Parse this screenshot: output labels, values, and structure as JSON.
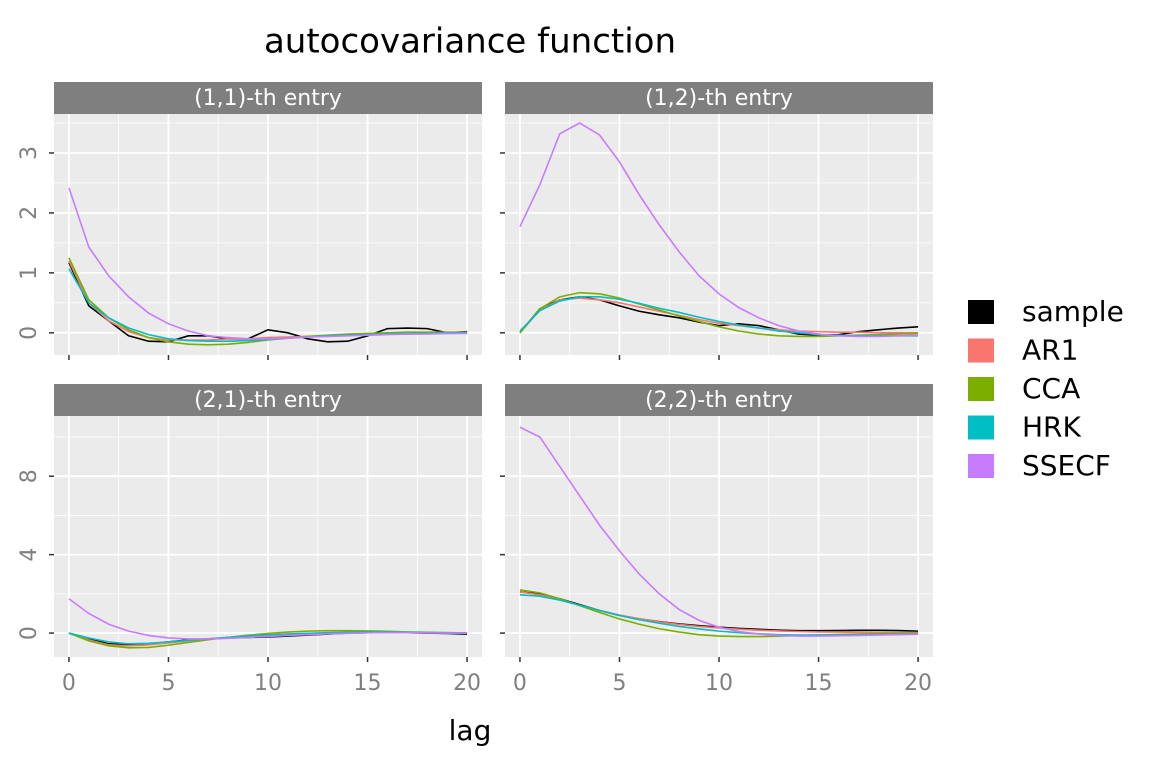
{
  "title": "autocovariance function",
  "x_label": "lag",
  "legend": {
    "position": "right",
    "series": [
      {
        "name": "sample",
        "color": "#000000"
      },
      {
        "name": "AR1",
        "color": "#F8766D"
      },
      {
        "name": "CCA",
        "color": "#7CAE00"
      },
      {
        "name": "HRK",
        "color": "#00BFC4"
      },
      {
        "name": "SSECF",
        "color": "#C77CFF"
      }
    ]
  },
  "chart_data": [
    {
      "type": "line",
      "strip": "(1,1)-th entry",
      "x": [
        0,
        1,
        2,
        3,
        4,
        5,
        6,
        7,
        8,
        9,
        10,
        11,
        12,
        13,
        14,
        15,
        16,
        17,
        18,
        19,
        20
      ],
      "xlim": [
        -0.75,
        20.75
      ],
      "xticks": [
        0,
        5,
        10,
        15,
        20
      ],
      "ylim": [
        -0.37,
        3.65
      ],
      "yticks": [
        0,
        1,
        2,
        3
      ],
      "grid": true,
      "series": [
        {
          "values": [
            1.17,
            0.45,
            0.2,
            -0.05,
            -0.14,
            -0.15,
            -0.05,
            -0.05,
            -0.1,
            -0.1,
            0.05,
            0,
            -0.1,
            -0.15,
            -0.14,
            -0.05,
            0.07,
            0.08,
            0.07,
            0,
            0.02
          ]
        },
        {
          "values": [
            1.2,
            0.5,
            0.2,
            0.02,
            -0.08,
            -0.12,
            -0.12,
            -0.12,
            -0.1,
            -0.1,
            -0.08,
            -0.07,
            -0.06,
            -0.05,
            -0.04,
            -0.03,
            -0.02,
            -0.02,
            -0.01,
            -0.01,
            0
          ]
        },
        {
          "values": [
            1.25,
            0.55,
            0.25,
            0.05,
            -0.08,
            -0.15,
            -0.19,
            -0.2,
            -0.19,
            -0.16,
            -0.12,
            -0.09,
            -0.06,
            -0.04,
            -0.02,
            -0.01,
            0,
            0.01,
            0.01,
            0.01,
            0.01
          ]
        },
        {
          "values": [
            1.07,
            0.5,
            0.25,
            0.08,
            -0.03,
            -0.1,
            -0.13,
            -0.14,
            -0.14,
            -0.13,
            -0.11,
            -0.09,
            -0.07,
            -0.05,
            -0.04,
            -0.03,
            -0.02,
            -0.01,
            -0.01,
            0,
            0
          ]
        },
        {
          "values": [
            2.42,
            1.43,
            0.95,
            0.6,
            0.33,
            0.15,
            0.03,
            -0.05,
            -0.08,
            -0.1,
            -0.1,
            -0.09,
            -0.07,
            -0.06,
            -0.05,
            -0.04,
            -0.03,
            -0.02,
            -0.02,
            -0.01,
            -0.01
          ]
        }
      ]
    },
    {
      "type": "line",
      "strip": "(1,2)-th entry",
      "x": [
        0,
        1,
        2,
        3,
        4,
        5,
        6,
        7,
        8,
        9,
        10,
        11,
        12,
        13,
        14,
        15,
        16,
        17,
        18,
        19,
        20
      ],
      "xlim": [
        -0.75,
        20.75
      ],
      "xticks": [
        0,
        5,
        10,
        15,
        20
      ],
      "ylim": [
        -0.37,
        3.65
      ],
      "yticks": [
        0,
        1,
        2,
        3
      ],
      "grid": true,
      "series": [
        {
          "values": [
            0,
            0.4,
            0.55,
            0.6,
            0.55,
            0.45,
            0.36,
            0.3,
            0.25,
            0.18,
            0.12,
            0.15,
            0.12,
            0.05,
            -0.02,
            -0.04,
            -0.03,
            0.02,
            0.05,
            0.08,
            0.1
          ]
        },
        {
          "values": [
            0,
            0.38,
            0.55,
            0.58,
            0.55,
            0.5,
            0.43,
            0.36,
            0.29,
            0.22,
            0.16,
            0.12,
            0.08,
            0.05,
            0.03,
            0.02,
            0.01,
            0.01,
            0,
            0,
            0
          ]
        },
        {
          "values": [
            0,
            0.4,
            0.6,
            0.67,
            0.65,
            0.58,
            0.48,
            0.38,
            0.28,
            0.19,
            0.1,
            0.03,
            -0.02,
            -0.05,
            -0.06,
            -0.06,
            -0.05,
            -0.04,
            -0.03,
            -0.02,
            -0.01
          ]
        },
        {
          "values": [
            0.03,
            0.37,
            0.53,
            0.6,
            0.6,
            0.56,
            0.49,
            0.41,
            0.34,
            0.26,
            0.19,
            0.13,
            0.08,
            0.03,
            0,
            -0.03,
            -0.04,
            -0.05,
            -0.05,
            -0.05,
            -0.05
          ]
        },
        {
          "values": [
            1.77,
            2.47,
            3.32,
            3.5,
            3.3,
            2.85,
            2.3,
            1.8,
            1.35,
            0.95,
            0.65,
            0.42,
            0.25,
            0.12,
            0.03,
            -0.02,
            -0.05,
            -0.06,
            -0.06,
            -0.05,
            -0.04
          ]
        }
      ]
    },
    {
      "type": "line",
      "strip": "(2,1)-th entry",
      "x": [
        0,
        1,
        2,
        3,
        4,
        5,
        6,
        7,
        8,
        9,
        10,
        11,
        12,
        13,
        14,
        15,
        16,
        17,
        18,
        19,
        20
      ],
      "xlim": [
        -0.75,
        20.75
      ],
      "xticks": [
        0,
        5,
        10,
        15,
        20
      ],
      "ylim": [
        -1.22,
        11.07
      ],
      "yticks": [
        0,
        4,
        8
      ],
      "grid": true,
      "series": [
        {
          "values": [
            0,
            -0.3,
            -0.55,
            -0.6,
            -0.55,
            -0.45,
            -0.35,
            -0.3,
            -0.25,
            -0.22,
            -0.2,
            -0.15,
            -0.1,
            -0.05,
            0,
            0.02,
            0.03,
            0.02,
            0,
            -0.02,
            -0.05
          ]
        },
        {
          "values": [
            0,
            -0.35,
            -0.6,
            -0.65,
            -0.6,
            -0.5,
            -0.4,
            -0.3,
            -0.22,
            -0.15,
            -0.1,
            -0.05,
            -0.02,
            0,
            0.01,
            0.02,
            0.02,
            0.02,
            0.01,
            0,
            0
          ]
        },
        {
          "values": [
            0,
            -0.4,
            -0.65,
            -0.75,
            -0.73,
            -0.62,
            -0.48,
            -0.34,
            -0.22,
            -0.11,
            -0.02,
            0.05,
            0.1,
            0.12,
            0.12,
            0.11,
            0.09,
            0.06,
            0.04,
            0.02,
            0
          ]
        },
        {
          "values": [
            0,
            -0.25,
            -0.45,
            -0.55,
            -0.52,
            -0.45,
            -0.37,
            -0.29,
            -0.22,
            -0.15,
            -0.1,
            -0.05,
            -0.01,
            0.02,
            0.04,
            0.05,
            0.05,
            0.04,
            0.03,
            0.02,
            0.01
          ]
        },
        {
          "values": [
            1.75,
            1.0,
            0.45,
            0.1,
            -0.12,
            -0.25,
            -0.3,
            -0.3,
            -0.27,
            -0.22,
            -0.17,
            -0.12,
            -0.08,
            -0.04,
            -0.01,
            0.01,
            0.02,
            0.02,
            0.01,
            0,
            0
          ]
        }
      ]
    },
    {
      "type": "line",
      "strip": "(2,2)-th entry",
      "x": [
        0,
        1,
        2,
        3,
        4,
        5,
        6,
        7,
        8,
        9,
        10,
        11,
        12,
        13,
        14,
        15,
        16,
        17,
        18,
        19,
        20
      ],
      "xlim": [
        -0.75,
        20.75
      ],
      "xticks": [
        0,
        5,
        10,
        15,
        20
      ],
      "ylim": [
        -1.22,
        11.07
      ],
      "yticks": [
        0,
        4,
        8
      ],
      "grid": true,
      "series": [
        {
          "values": [
            2.1,
            2.0,
            1.75,
            1.45,
            1.15,
            0.9,
            0.72,
            0.58,
            0.47,
            0.38,
            0.3,
            0.24,
            0.19,
            0.15,
            0.12,
            0.12,
            0.13,
            0.14,
            0.14,
            0.13,
            0.1
          ]
        },
        {
          "values": [
            2.1,
            1.95,
            1.7,
            1.42,
            1.15,
            0.92,
            0.73,
            0.57,
            0.44,
            0.34,
            0.26,
            0.2,
            0.15,
            0.11,
            0.08,
            0.06,
            0.05,
            0.04,
            0.03,
            0.02,
            0.02
          ]
        },
        {
          "values": [
            2.2,
            2.05,
            1.75,
            1.4,
            1.05,
            0.72,
            0.45,
            0.22,
            0.05,
            -0.08,
            -0.15,
            -0.18,
            -0.18,
            -0.16,
            -0.13,
            -0.1,
            -0.07,
            -0.05,
            -0.03,
            -0.02,
            -0.01
          ]
        },
        {
          "values": [
            1.95,
            1.88,
            1.68,
            1.42,
            1.15,
            0.9,
            0.68,
            0.5,
            0.34,
            0.21,
            0.1,
            0.02,
            -0.04,
            -0.08,
            -0.1,
            -0.1,
            -0.1,
            -0.09,
            -0.08,
            -0.06,
            -0.05
          ]
        },
        {
          "values": [
            10.5,
            10.0,
            8.5,
            7.0,
            5.5,
            4.2,
            3.0,
            2.0,
            1.2,
            0.65,
            0.3,
            0.08,
            -0.05,
            -0.12,
            -0.15,
            -0.15,
            -0.14,
            -0.12,
            -0.1,
            -0.08,
            -0.06
          ]
        }
      ]
    }
  ]
}
